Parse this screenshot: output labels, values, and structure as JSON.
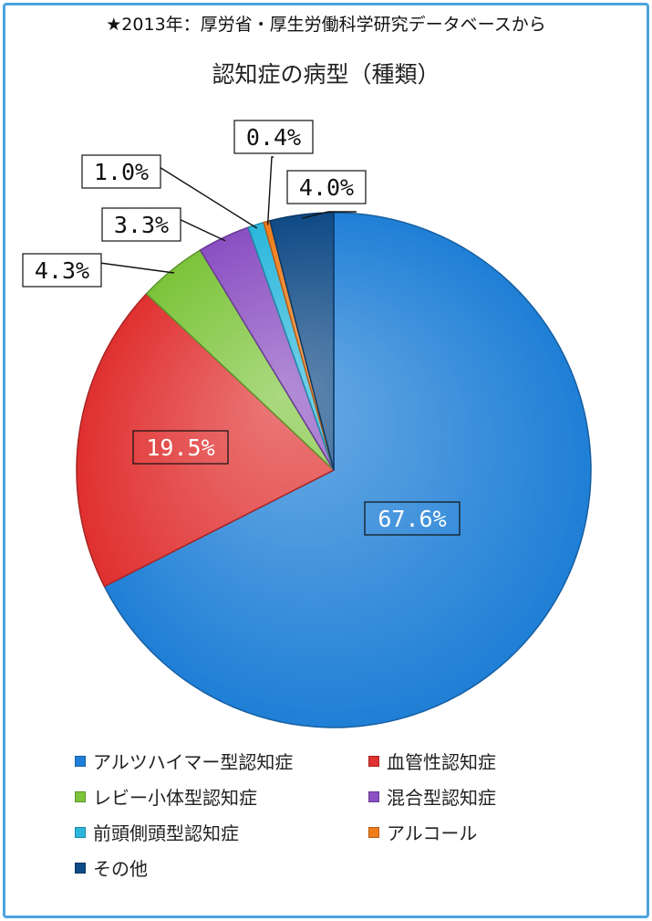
{
  "source_note": "★2013年：厚労省・厚生労働科学研究データベースから",
  "chart_data": {
    "type": "pie",
    "title": "認知症の病型（種類）",
    "unit": "%",
    "start_angle_deg": 0,
    "direction": "clockwise",
    "categories": [
      "アルツハイマー型認知症",
      "血管性認知症",
      "レビー小体型認知症",
      "混合型認知症",
      "前頭側頭型認知症",
      "アルコール",
      "その他"
    ],
    "values": [
      67.6,
      19.5,
      4.3,
      3.3,
      1.0,
      0.4,
      4.0
    ],
    "labels": [
      "67.6%",
      "19.5%",
      "4.3%",
      "3.3%",
      "1.0%",
      "0.4%",
      "4.0%"
    ],
    "colors": [
      "#1f7fd6",
      "#e03030",
      "#7cc43a",
      "#8a4fc2",
      "#2bb7dc",
      "#f07d1a",
      "#0f4a86"
    ],
    "legend_position": "bottom"
  }
}
